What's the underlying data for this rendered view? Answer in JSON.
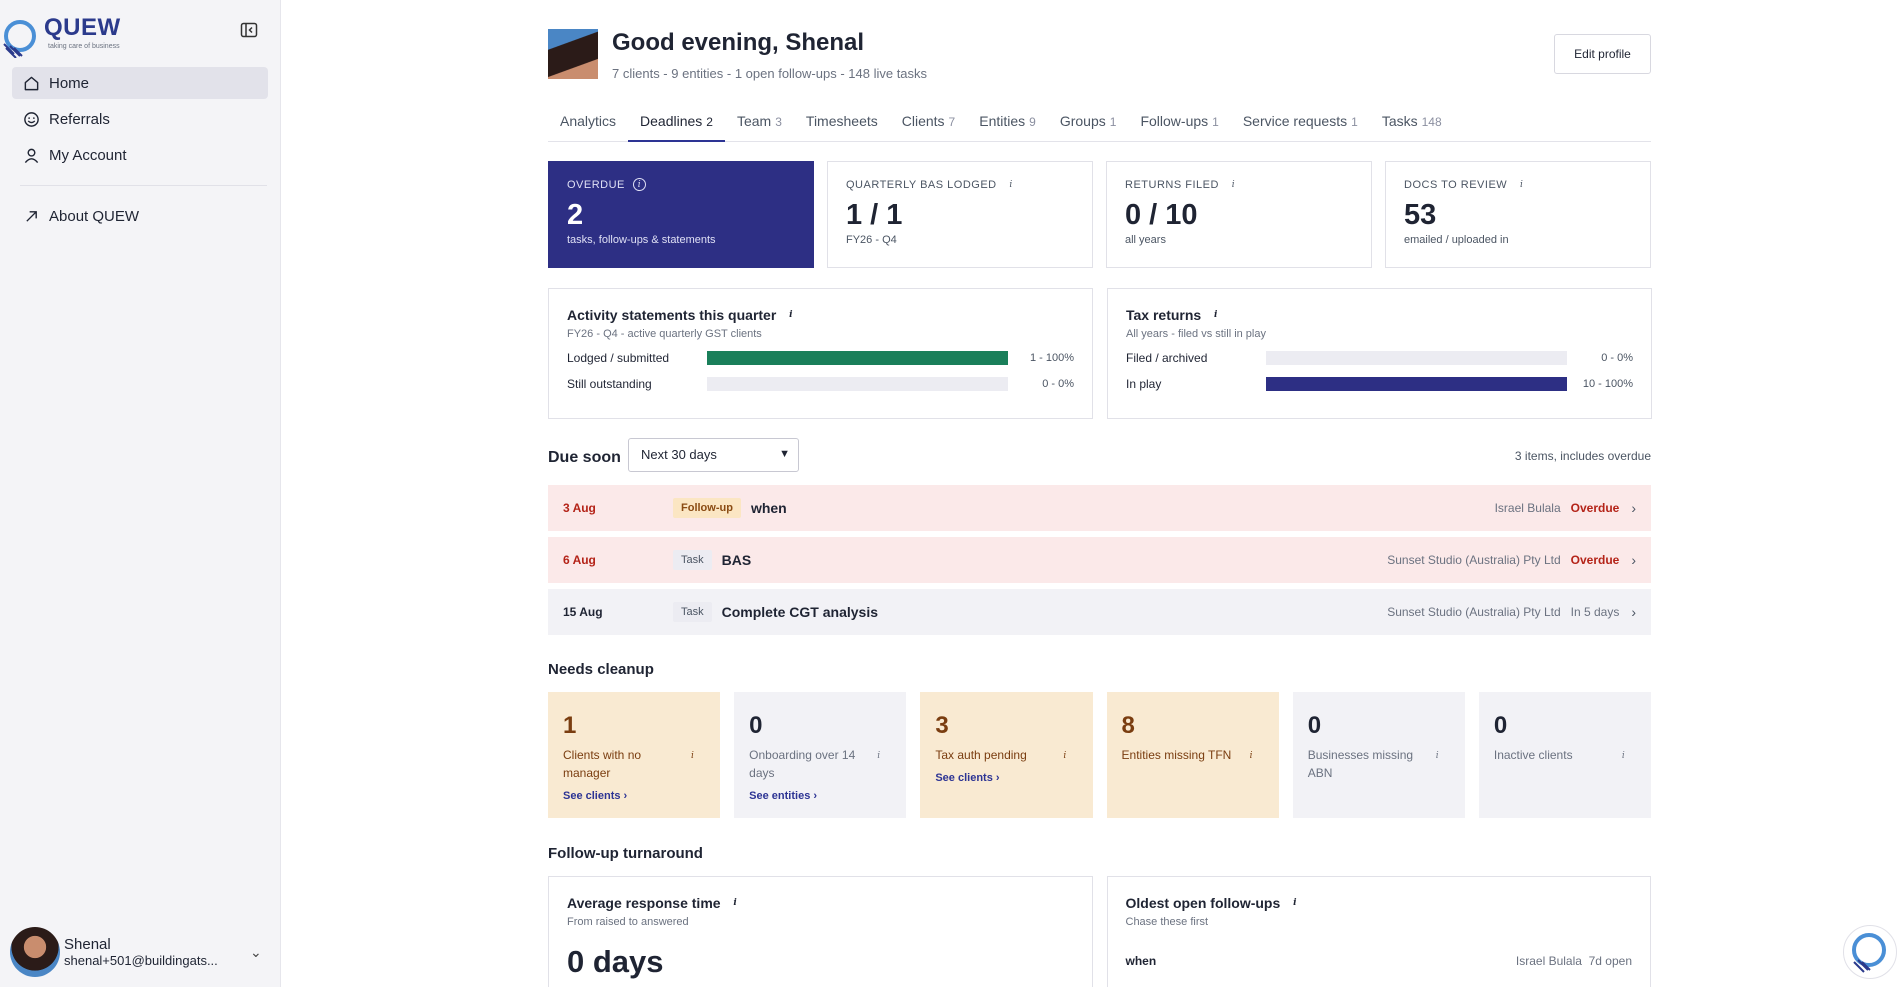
{
  "app": {
    "logo_text": "QUEW",
    "logo_tagline": "taking care of business",
    "brand_color": "#2b3a8c",
    "accent_color": "#2d2f84"
  },
  "sidebar": {
    "items": [
      {
        "label": "Home",
        "icon": "home-icon",
        "active": true
      },
      {
        "label": "Referrals",
        "icon": "smiley-icon",
        "active": false
      },
      {
        "label": "My Account",
        "icon": "user-icon",
        "active": false
      }
    ],
    "about_label": "About QUEW",
    "user": {
      "name": "Shenal",
      "email": "shenal+501@buildingats..."
    }
  },
  "header": {
    "greeting": "Good evening, Shenal",
    "subtitle": "7 clients - 9 entities - 1 open follow-ups - 148 live tasks",
    "edit_profile_label": "Edit profile"
  },
  "tabs": [
    {
      "label": "Analytics",
      "count": ""
    },
    {
      "label": "Deadlines",
      "count": "2",
      "active": true
    },
    {
      "label": "Team",
      "count": "3"
    },
    {
      "label": "Timesheets",
      "count": ""
    },
    {
      "label": "Clients",
      "count": "7"
    },
    {
      "label": "Entities",
      "count": "9"
    },
    {
      "label": "Groups",
      "count": "1"
    },
    {
      "label": "Follow-ups",
      "count": "1"
    },
    {
      "label": "Service requests",
      "count": "1"
    },
    {
      "label": "Tasks",
      "count": "148"
    }
  ],
  "stats": [
    {
      "label": "OVERDUE",
      "value": "2",
      "sub": "tasks, follow-ups & statements"
    },
    {
      "label": "QUARTERLY BAS LODGED",
      "value": "1 / 1",
      "sub": "FY26 - Q4"
    },
    {
      "label": "RETURNS FILED",
      "value": "0 / 10",
      "sub": "all years"
    },
    {
      "label": "DOCS TO REVIEW",
      "value": "53",
      "sub": "emailed / uploaded in"
    }
  ],
  "activity": {
    "title": "Activity statements this quarter",
    "subtitle": "FY26 - Q4 - active quarterly GST clients",
    "rows": [
      {
        "label": "Lodged / submitted",
        "value": "1 - 100%",
        "fraction": 1.0,
        "color": "#1a7f5a"
      },
      {
        "label": "Still outstanding",
        "value": "0 - 0%",
        "fraction": 0.0,
        "color": "#1a7f5a"
      }
    ]
  },
  "tax_returns": {
    "title": "Tax returns",
    "subtitle": "All years - filed vs still in play",
    "rows": [
      {
        "label": "Filed / archived",
        "value": "0 - 0%",
        "fraction": 0.0,
        "color": "#2d2f84"
      },
      {
        "label": "In play",
        "value": "10 - 100%",
        "fraction": 1.0,
        "color": "#2d2f84"
      }
    ]
  },
  "due_soon": {
    "title": "Due soon",
    "select_value": "Next 30 days",
    "count_text": "3 items, includes overdue",
    "items": [
      {
        "date": "3 Aug",
        "type": "Follow-up",
        "name": "when",
        "client": "Israel Bulala",
        "status": "Overdue",
        "overdue": true
      },
      {
        "date": "6 Aug",
        "type": "Task",
        "name": "BAS",
        "client": "Sunset Studio (Australia) Pty Ltd",
        "status": "Overdue",
        "overdue": true
      },
      {
        "date": "15 Aug",
        "type": "Task",
        "name": "Complete CGT analysis",
        "client": "Sunset Studio (Australia) Pty Ltd",
        "status": "In 5 days",
        "overdue": false
      }
    ]
  },
  "cleanup": {
    "title": "Needs cleanup",
    "cards": [
      {
        "value": "1",
        "label": "Clients with no manager",
        "link": "See clients ›",
        "warn": true
      },
      {
        "value": "0",
        "label": "Onboarding over 14 days",
        "link": "See entities ›",
        "warn": false
      },
      {
        "value": "3",
        "label": "Tax auth pending",
        "link": "See clients ›",
        "warn": true
      },
      {
        "value": "8",
        "label": "Entities missing TFN",
        "link": "",
        "warn": true
      },
      {
        "value": "0",
        "label": "Businesses missing ABN",
        "link": "",
        "warn": false
      },
      {
        "value": "0",
        "label": "Inactive clients",
        "link": "",
        "warn": false
      }
    ]
  },
  "turnaround": {
    "title": "Follow-up turnaround",
    "avg": {
      "title": "Average response time",
      "subtitle": "From raised to answered",
      "value": "0 days"
    },
    "oldest": {
      "title": "Oldest open follow-ups",
      "subtitle": "Chase these first",
      "items": [
        {
          "name": "when",
          "client": "Israel Bulala",
          "age": "7d open"
        }
      ]
    }
  }
}
